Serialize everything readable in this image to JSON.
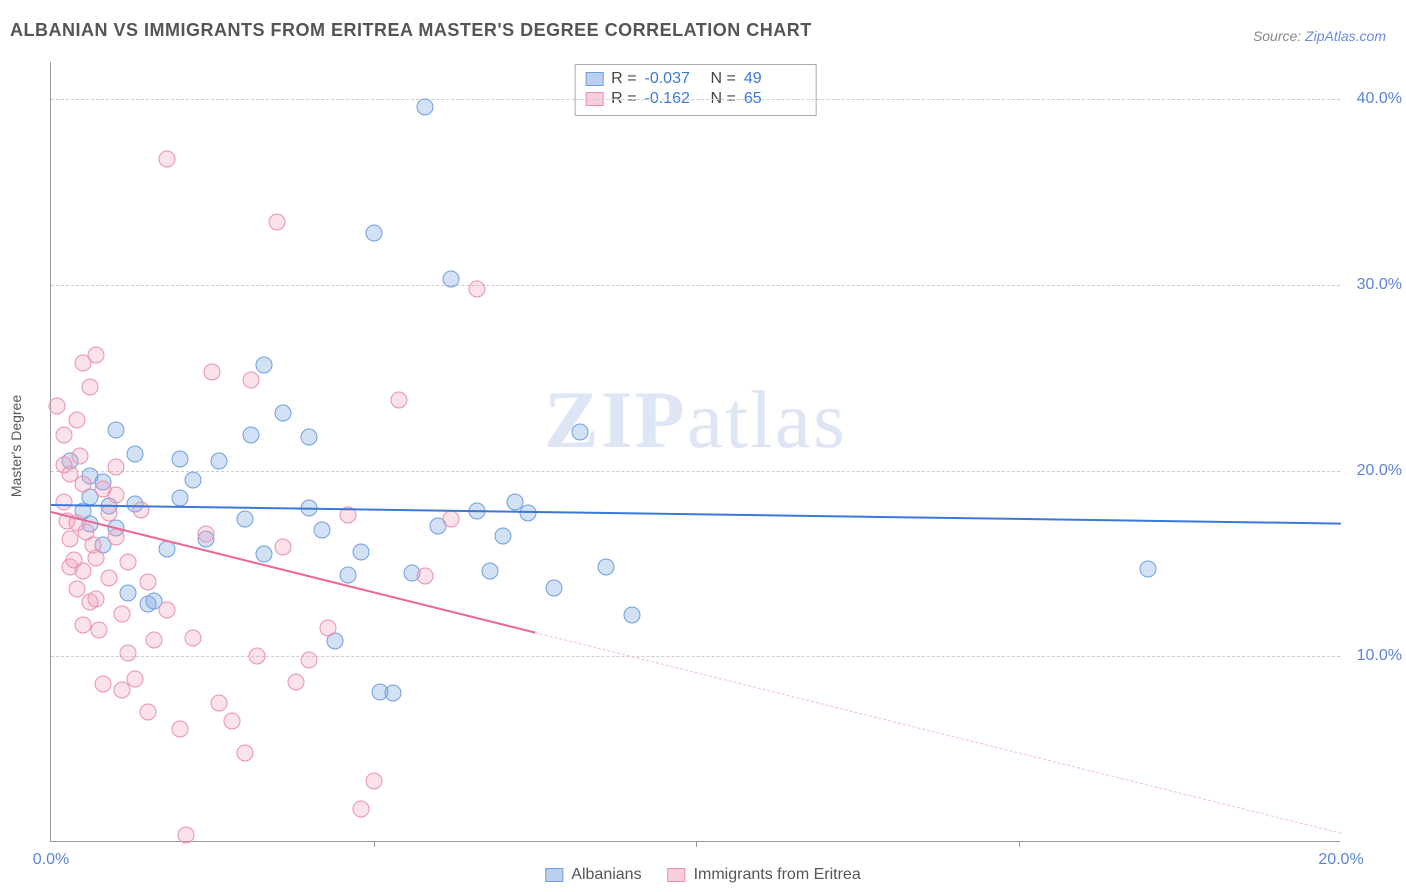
{
  "title": "ALBANIAN VS IMMIGRANTS FROM ERITREA MASTER'S DEGREE CORRELATION CHART",
  "source_label": "Source:",
  "source_name": "ZipAtlas.com",
  "watermark": {
    "bold": "ZIP",
    "rest": "atlas"
  },
  "ylabel": "Master's Degree",
  "chart": {
    "type": "scatter",
    "background_color": "#ffffff",
    "grid_color": "#cccccc",
    "axis_color": "#999999",
    "x": {
      "min": 0,
      "max": 20,
      "ticks": [
        0,
        20
      ],
      "tick_labels": [
        "0.0%",
        "20.0%"
      ],
      "minor_ticks": [
        5,
        10,
        15
      ]
    },
    "y": {
      "min": 0,
      "max": 42,
      "grid": [
        10,
        20,
        30,
        40
      ],
      "tick_labels": [
        "10.0%",
        "20.0%",
        "30.0%",
        "40.0%"
      ]
    },
    "series": [
      {
        "key": "albanians",
        "label": "Albanians",
        "color_fill": "rgba(130,170,225,0.35)",
        "color_stroke": "#6f9fe0",
        "trend_color": "#3b78d6",
        "marker_radius": 8.5,
        "R": "-0.037",
        "N": "49",
        "trend": {
          "y_at_x0": 18.2,
          "y_at_xmax": 17.2,
          "solid_until_x": 20
        },
        "points": [
          [
            0.3,
            20.5
          ],
          [
            0.5,
            17.8
          ],
          [
            0.6,
            18.6
          ],
          [
            0.6,
            19.7
          ],
          [
            0.6,
            17.1
          ],
          [
            0.8,
            19.4
          ],
          [
            0.8,
            16.0
          ],
          [
            0.9,
            18.1
          ],
          [
            1.0,
            22.2
          ],
          [
            1.0,
            16.9
          ],
          [
            1.2,
            13.4
          ],
          [
            1.3,
            20.9
          ],
          [
            1.3,
            18.2
          ],
          [
            1.5,
            12.8
          ],
          [
            1.6,
            13.0
          ],
          [
            1.8,
            15.8
          ],
          [
            2.0,
            20.6
          ],
          [
            2.0,
            18.5
          ],
          [
            2.2,
            19.5
          ],
          [
            2.4,
            16.3
          ],
          [
            2.6,
            20.5
          ],
          [
            3.0,
            17.4
          ],
          [
            3.1,
            21.9
          ],
          [
            3.3,
            25.7
          ],
          [
            3.3,
            15.5
          ],
          [
            3.6,
            23.1
          ],
          [
            4.0,
            21.8
          ],
          [
            4.0,
            18.0
          ],
          [
            4.2,
            16.8
          ],
          [
            4.4,
            10.8
          ],
          [
            4.6,
            14.4
          ],
          [
            4.8,
            15.6
          ],
          [
            5.0,
            32.8
          ],
          [
            5.1,
            8.1
          ],
          [
            5.3,
            8.0
          ],
          [
            5.6,
            14.5
          ],
          [
            5.8,
            39.6
          ],
          [
            6.0,
            17.0
          ],
          [
            6.2,
            30.3
          ],
          [
            6.6,
            17.8
          ],
          [
            6.8,
            14.6
          ],
          [
            7.0,
            16.5
          ],
          [
            7.4,
            17.7
          ],
          [
            7.8,
            13.7
          ],
          [
            8.2,
            22.1
          ],
          [
            8.6,
            14.8
          ],
          [
            9.0,
            12.2
          ],
          [
            17.0,
            14.7
          ],
          [
            7.2,
            18.3
          ]
        ]
      },
      {
        "key": "eritrea",
        "label": "Immigrants from Eritrea",
        "color_fill": "rgba(240,160,185,0.3)",
        "color_stroke": "#ec8fb0",
        "trend_color": "#e86b96",
        "marker_radius": 8.5,
        "R": "-0.162",
        "N": "65",
        "trend": {
          "y_at_x0": 17.8,
          "y_at_xmax": 0.5,
          "solid_until_x": 7.5
        },
        "points": [
          [
            0.1,
            23.5
          ],
          [
            0.2,
            21.9
          ],
          [
            0.2,
            20.3
          ],
          [
            0.2,
            18.3
          ],
          [
            0.25,
            17.3
          ],
          [
            0.3,
            16.3
          ],
          [
            0.3,
            19.8
          ],
          [
            0.3,
            14.8
          ],
          [
            0.35,
            15.2
          ],
          [
            0.4,
            22.7
          ],
          [
            0.4,
            17.2
          ],
          [
            0.4,
            13.6
          ],
          [
            0.45,
            20.8
          ],
          [
            0.5,
            25.8
          ],
          [
            0.5,
            19.3
          ],
          [
            0.5,
            14.6
          ],
          [
            0.5,
            11.7
          ],
          [
            0.55,
            16.7
          ],
          [
            0.6,
            24.5
          ],
          [
            0.6,
            12.9
          ],
          [
            0.65,
            16.0
          ],
          [
            0.7,
            26.2
          ],
          [
            0.7,
            15.3
          ],
          [
            0.7,
            13.1
          ],
          [
            0.75,
            11.4
          ],
          [
            0.8,
            19.0
          ],
          [
            0.8,
            8.5
          ],
          [
            0.9,
            17.7
          ],
          [
            0.9,
            14.2
          ],
          [
            1.0,
            20.2
          ],
          [
            1.0,
            16.4
          ],
          [
            1.0,
            18.7
          ],
          [
            1.1,
            12.3
          ],
          [
            1.1,
            8.2
          ],
          [
            1.2,
            15.1
          ],
          [
            1.2,
            10.2
          ],
          [
            1.3,
            8.8
          ],
          [
            1.4,
            17.9
          ],
          [
            1.5,
            14.0
          ],
          [
            1.5,
            7.0
          ],
          [
            1.6,
            10.9
          ],
          [
            1.8,
            36.8
          ],
          [
            1.8,
            12.5
          ],
          [
            2.0,
            6.1
          ],
          [
            2.1,
            0.4
          ],
          [
            2.2,
            11.0
          ],
          [
            2.4,
            16.6
          ],
          [
            2.5,
            25.3
          ],
          [
            2.6,
            7.5
          ],
          [
            2.8,
            6.5
          ],
          [
            3.0,
            4.8
          ],
          [
            3.1,
            24.9
          ],
          [
            3.2,
            10.0
          ],
          [
            3.5,
            33.4
          ],
          [
            3.6,
            15.9
          ],
          [
            3.8,
            8.6
          ],
          [
            4.0,
            9.8
          ],
          [
            4.3,
            11.5
          ],
          [
            4.6,
            17.6
          ],
          [
            4.8,
            1.8
          ],
          [
            5.0,
            3.3
          ],
          [
            5.4,
            23.8
          ],
          [
            5.8,
            14.3
          ],
          [
            6.2,
            17.4
          ],
          [
            6.6,
            29.8
          ]
        ]
      }
    ]
  }
}
